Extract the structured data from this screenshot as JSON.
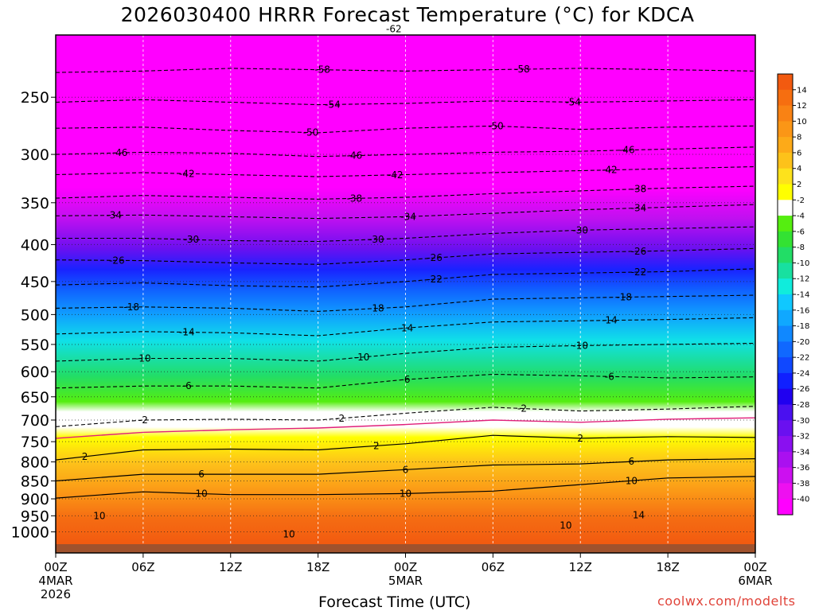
{
  "title": "2026030400 HRRR Forecast Temperature (°C) for KDCA",
  "credit": "coolwx.com/modelts",
  "chart_data": {
    "type": "heatmap",
    "title": "2026030400 HRRR Forecast Temperature (°C) for KDCA",
    "xlabel": "Forecast Time (UTC)",
    "ylabel": "",
    "x_range": [
      0,
      48
    ],
    "x_ticks": [
      {
        "x": 0,
        "label": "00Z",
        "sub1": "4MAR",
        "sub2": "2026"
      },
      {
        "x": 6,
        "label": "06Z",
        "sub1": "",
        "sub2": ""
      },
      {
        "x": 12,
        "label": "12Z",
        "sub1": "",
        "sub2": ""
      },
      {
        "x": 18,
        "label": "18Z",
        "sub1": "",
        "sub2": ""
      },
      {
        "x": 24,
        "label": "00Z",
        "sub1": "5MAR",
        "sub2": ""
      },
      {
        "x": 30,
        "label": "06Z",
        "sub1": "",
        "sub2": ""
      },
      {
        "x": 36,
        "label": "12Z",
        "sub1": "",
        "sub2": ""
      },
      {
        "x": 42,
        "label": "18Z",
        "sub1": "",
        "sub2": ""
      },
      {
        "x": 48,
        "label": "00Z",
        "sub1": "6MAR",
        "sub2": ""
      }
    ],
    "y_scale": "log",
    "y_range": [
      1040,
      205
    ],
    "y_ticks": [
      250,
      300,
      350,
      400,
      450,
      500,
      550,
      600,
      650,
      700,
      750,
      800,
      850,
      900,
      950,
      1000
    ],
    "colorbar": {
      "labels": [
        "14",
        "12",
        "10",
        "8",
        "6",
        "4",
        "2",
        "-2",
        "-4",
        "-6",
        "-8",
        "-10",
        "-12",
        "-14",
        "-16",
        "-18",
        "-20",
        "-22",
        "-24",
        "-26",
        "-28",
        "-30",
        "-32",
        "-34",
        "-36",
        "-38",
        "-40"
      ],
      "colors": [
        "#f25a10",
        "#f66e10",
        "#f98214",
        "#fb9616",
        "#fdaa18",
        "#fdc21a",
        "#fde21c",
        "#ffff00",
        "#ffffff",
        "#55ee10",
        "#33e233",
        "#22dd66",
        "#18e0a0",
        "#10ecdc",
        "#10c8ff",
        "#10a8ff",
        "#1088ff",
        "#1068ff",
        "#1048ff",
        "#1020ff",
        "#2000f0",
        "#4a10f0",
        "#6a10f0",
        "#8a10f0",
        "#aa10f0",
        "#cc10f0",
        "#ee10f0",
        "#ff00ff"
      ]
    },
    "contours": [
      {
        "label": "-62",
        "label_x": 23.2,
        "p": [
          200,
          201,
          203,
          202,
          201,
          201,
          200,
          200,
          199
        ]
      },
      {
        "label": "-58",
        "label_x": 18.3,
        "p": [
          231,
          230,
          228,
          229,
          230,
          229,
          228,
          229,
          230
        ]
      },
      {
        "label": "-58",
        "label_x": 32.0,
        "p": [
          231,
          230,
          228,
          229,
          230,
          229,
          228,
          229,
          230
        ]
      },
      {
        "label": "-54",
        "label_x": 19.0,
        "p": [
          254,
          252,
          254,
          256,
          255,
          253,
          254,
          253,
          252
        ]
      },
      {
        "label": "-54",
        "label_x": 35.5,
        "p": [
          254,
          252,
          254,
          256,
          255,
          253,
          254,
          253,
          252
        ]
      },
      {
        "label": "-50",
        "label_x": 17.5,
        "p": [
          276,
          275,
          278,
          280,
          276,
          274,
          277,
          275,
          274
        ]
      },
      {
        "label": "-50",
        "label_x": 30.2,
        "p": [
          276,
          275,
          278,
          280,
          276,
          274,
          277,
          275,
          274
        ]
      },
      {
        "label": "-46",
        "label_x": 4.4,
        "p": [
          300,
          298,
          299,
          302,
          300,
          298,
          297,
          295,
          293
        ]
      },
      {
        "label": "-46",
        "label_x": 20.5,
        "p": [
          300,
          298,
          299,
          302,
          300,
          298,
          297,
          295,
          293
        ]
      },
      {
        "label": "-46",
        "label_x": 39.2,
        "p": [
          300,
          298,
          299,
          302,
          300,
          298,
          297,
          295,
          293
        ]
      },
      {
        "label": "-42",
        "label_x": 9.0,
        "p": [
          320,
          318,
          320,
          322,
          320,
          318,
          316,
          314,
          312
        ]
      },
      {
        "label": "-42",
        "label_x": 23.3,
        "p": [
          320,
          318,
          320,
          322,
          320,
          318,
          316,
          314,
          312
        ]
      },
      {
        "label": "-42",
        "label_x": 38.0,
        "p": [
          320,
          318,
          320,
          322,
          320,
          318,
          316,
          314,
          312
        ]
      },
      {
        "label": "-38",
        "label_x": 20.5,
        "p": [
          345,
          342,
          344,
          346,
          344,
          340,
          337,
          334,
          332
        ]
      },
      {
        "label": "-38",
        "label_x": 40.0,
        "p": [
          345,
          342,
          344,
          346,
          344,
          340,
          337,
          334,
          332
        ]
      },
      {
        "label": "-34",
        "label_x": 4.0,
        "p": [
          365,
          364,
          366,
          368,
          366,
          362,
          358,
          355,
          352
        ]
      },
      {
        "label": "-34",
        "label_x": 24.2,
        "p": [
          365,
          364,
          366,
          368,
          366,
          362,
          358,
          355,
          352
        ]
      },
      {
        "label": "-34",
        "label_x": 40.0,
        "p": [
          365,
          364,
          366,
          368,
          366,
          362,
          358,
          355,
          352
        ]
      },
      {
        "label": "-30",
        "label_x": 9.3,
        "p": [
          392,
          392,
          395,
          396,
          392,
          386,
          382,
          380,
          378
        ]
      },
      {
        "label": "-30",
        "label_x": 22.0,
        "p": [
          392,
          392,
          395,
          396,
          392,
          386,
          382,
          380,
          378
        ]
      },
      {
        "label": "-30",
        "label_x": 36.0,
        "p": [
          392,
          392,
          395,
          396,
          392,
          386,
          382,
          380,
          378
        ]
      },
      {
        "label": "-26",
        "label_x": 4.2,
        "p": [
          420,
          421,
          424,
          426,
          420,
          412,
          410,
          408,
          405
        ]
      },
      {
        "label": "-26",
        "label_x": 26.0,
        "p": [
          420,
          421,
          424,
          426,
          420,
          412,
          410,
          408,
          405
        ]
      },
      {
        "label": "-26",
        "label_x": 40.0,
        "p": [
          420,
          421,
          424,
          426,
          420,
          412,
          410,
          408,
          405
        ]
      },
      {
        "label": "-22",
        "label_x": 26.0,
        "p": [
          455,
          452,
          456,
          458,
          450,
          440,
          438,
          436,
          432
        ]
      },
      {
        "label": "-22",
        "label_x": 40.0,
        "p": [
          455,
          452,
          456,
          458,
          450,
          440,
          438,
          436,
          432
        ]
      },
      {
        "label": "-18",
        "label_x": 5.2,
        "p": [
          490,
          488,
          490,
          495,
          488,
          476,
          474,
          472,
          470
        ]
      },
      {
        "label": "-18",
        "label_x": 22.0,
        "p": [
          490,
          488,
          490,
          495,
          488,
          476,
          474,
          472,
          470
        ]
      },
      {
        "label": "-18",
        "label_x": 39.0,
        "p": [
          490,
          488,
          490,
          495,
          488,
          476,
          474,
          472,
          470
        ]
      },
      {
        "label": "-14",
        "label_x": 9.0,
        "p": [
          532,
          528,
          530,
          535,
          522,
          512,
          510,
          508,
          505
        ]
      },
      {
        "label": "-14",
        "label_x": 24.0,
        "p": [
          532,
          528,
          530,
          535,
          522,
          512,
          510,
          508,
          505
        ]
      },
      {
        "label": "-14",
        "label_x": 38.0,
        "p": [
          532,
          528,
          530,
          535,
          522,
          512,
          510,
          508,
          505
        ]
      },
      {
        "label": "-10",
        "label_x": 6.0,
        "p": [
          580,
          575,
          575,
          580,
          566,
          555,
          552,
          550,
          548
        ]
      },
      {
        "label": "-10",
        "label_x": 21.0,
        "p": [
          580,
          575,
          575,
          580,
          566,
          555,
          552,
          550,
          548
        ]
      },
      {
        "label": "-10",
        "label_x": 36.0,
        "p": [
          580,
          575,
          575,
          580,
          566,
          555,
          552,
          550,
          548
        ]
      },
      {
        "label": "-6",
        "label_x": 9.0,
        "p": [
          632,
          628,
          628,
          632,
          615,
          605,
          608,
          612,
          610
        ]
      },
      {
        "label": "-6",
        "label_x": 24.0,
        "p": [
          632,
          628,
          628,
          632,
          615,
          605,
          608,
          612,
          610
        ]
      },
      {
        "label": "-6",
        "label_x": 38.0,
        "p": [
          632,
          628,
          628,
          632,
          615,
          605,
          608,
          612,
          610
        ]
      },
      {
        "label": "-2",
        "label_x": 6.0,
        "p": [
          715,
          700,
          698,
          700,
          685,
          672,
          680,
          676,
          670
        ]
      },
      {
        "label": "-2",
        "label_x": 19.5,
        "p": [
          715,
          700,
          698,
          700,
          685,
          672,
          680,
          676,
          670
        ]
      },
      {
        "label": "-2",
        "label_x": 32.0,
        "p": [
          715,
          700,
          698,
          700,
          685,
          672,
          680,
          676,
          670
        ]
      }
    ],
    "zero_line": {
      "p": [
        742,
        728,
        722,
        718,
        710,
        700,
        705,
        698,
        695
      ]
    },
    "positive_contours": [
      {
        "label": "2",
        "label_x": 2.0,
        "p": [
          795,
          770,
          768,
          770,
          755,
          735,
          742,
          738,
          740
        ]
      },
      {
        "label": "2",
        "label_x": 22.0,
        "p": [
          795,
          770,
          768,
          770,
          755,
          735,
          742,
          738,
          740
        ]
      },
      {
        "label": "2",
        "label_x": 36.0,
        "p": [
          795,
          770,
          768,
          770,
          755,
          735,
          742,
          738,
          740
        ]
      },
      {
        "label": "6",
        "label_x": 10.0,
        "p": [
          850,
          832,
          832,
          832,
          820,
          808,
          805,
          795,
          792
        ]
      },
      {
        "label": "6",
        "label_x": 24.0,
        "p": [
          850,
          832,
          832,
          832,
          820,
          808,
          805,
          795,
          792
        ]
      },
      {
        "label": "6",
        "label_x": 39.5,
        "p": [
          850,
          832,
          832,
          832,
          820,
          808,
          805,
          795,
          792
        ]
      },
      {
        "label": "10",
        "label_x": 10.0,
        "p": [
          898,
          880,
          888,
          888,
          885,
          878,
          860,
          842,
          838
        ]
      },
      {
        "label": "10",
        "label_x": 24.0,
        "p": [
          898,
          880,
          888,
          888,
          885,
          878,
          860,
          842,
          838
        ]
      },
      {
        "label": "10",
        "label_x": 39.5,
        "p": [
          898,
          880,
          888,
          888,
          885,
          878,
          860,
          842,
          838
        ]
      }
    ],
    "extra_labels": [
      {
        "label": "10",
        "x": 3.0,
        "p": 950
      },
      {
        "label": "10",
        "x": 16.0,
        "p": 1007
      },
      {
        "label": "10",
        "x": 35.0,
        "p": 980
      },
      {
        "label": "14",
        "x": 40.0,
        "p": 948
      }
    ]
  }
}
